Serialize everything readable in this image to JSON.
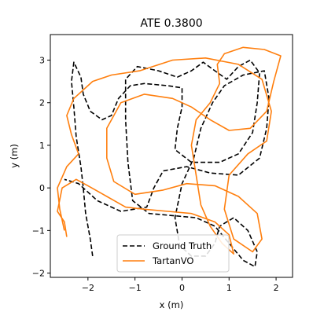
{
  "chart_data": {
    "type": "line",
    "title": "ATE 0.3800",
    "xlabel": "x (m)",
    "ylabel": "y (m)",
    "xlim": [
      -2.8,
      2.35
    ],
    "ylim": [
      -2.1,
      3.6
    ],
    "xticks": [
      -2,
      -1,
      0,
      1,
      2
    ],
    "yticks": [
      -2,
      -1,
      0,
      1,
      2,
      3
    ],
    "xtick_labels": [
      "−2",
      "−1",
      "0",
      "1",
      "2"
    ],
    "ytick_labels": [
      "−2",
      "−1",
      "0",
      "1",
      "2",
      "3"
    ],
    "grid": false,
    "legend_position": "lower-center",
    "series": [
      {
        "name": "Ground Truth",
        "color": "#000000",
        "style": "dashed",
        "points": [
          [
            -1.9,
            -1.6
          ],
          [
            -1.95,
            -1.2
          ],
          [
            -2.05,
            -0.6
          ],
          [
            -2.1,
            0.0
          ],
          [
            -2.15,
            0.5
          ],
          [
            -2.25,
            1.2
          ],
          [
            -2.3,
            1.9
          ],
          [
            -2.35,
            2.5
          ],
          [
            -2.3,
            2.95
          ],
          [
            -2.15,
            2.6
          ],
          [
            -2.1,
            2.2
          ],
          [
            -1.95,
            1.8
          ],
          [
            -1.7,
            1.6
          ],
          [
            -1.5,
            1.7
          ],
          [
            -1.35,
            2.1
          ],
          [
            -1.1,
            2.4
          ],
          [
            -0.8,
            2.45
          ],
          [
            -0.3,
            2.4
          ],
          [
            0.0,
            2.35
          ],
          [
            0.0,
            1.9
          ],
          [
            -0.1,
            1.4
          ],
          [
            -0.15,
            0.9
          ],
          [
            0.2,
            0.6
          ],
          [
            0.8,
            0.6
          ],
          [
            1.2,
            0.8
          ],
          [
            1.5,
            1.3
          ],
          [
            1.6,
            2.0
          ],
          [
            1.65,
            2.7
          ],
          [
            1.45,
            3.0
          ],
          [
            1.2,
            2.85
          ],
          [
            0.95,
            2.55
          ],
          [
            0.7,
            2.75
          ],
          [
            0.45,
            2.95
          ],
          [
            0.2,
            2.75
          ],
          [
            -0.1,
            2.6
          ],
          [
            -0.5,
            2.75
          ],
          [
            -0.95,
            2.85
          ],
          [
            -1.2,
            2.55
          ],
          [
            -1.2,
            1.6
          ],
          [
            -1.15,
            0.6
          ],
          [
            -1.05,
            -0.3
          ],
          [
            -0.7,
            -0.6
          ],
          [
            -0.2,
            -0.65
          ],
          [
            0.3,
            -0.7
          ],
          [
            0.7,
            -0.9
          ],
          [
            1.0,
            -1.3
          ],
          [
            1.3,
            -1.7
          ],
          [
            1.55,
            -1.85
          ],
          [
            1.6,
            -1.5
          ],
          [
            1.4,
            -1.0
          ],
          [
            1.1,
            -0.7
          ],
          [
            0.8,
            -0.9
          ],
          [
            0.7,
            -1.3
          ],
          [
            0.5,
            -1.6
          ],
          [
            0.2,
            -1.6
          ],
          [
            -0.05,
            -1.35
          ],
          [
            -0.15,
            -0.7
          ],
          [
            0.0,
            0.1
          ],
          [
            0.25,
            0.7
          ],
          [
            0.4,
            1.4
          ],
          [
            0.65,
            2.0
          ],
          [
            0.9,
            2.4
          ],
          [
            1.3,
            2.65
          ],
          [
            1.75,
            2.75
          ],
          [
            1.85,
            2.1
          ],
          [
            1.8,
            1.4
          ],
          [
            1.65,
            0.7
          ],
          [
            1.2,
            0.3
          ],
          [
            0.6,
            0.35
          ],
          [
            0.1,
            0.5
          ],
          [
            -0.4,
            0.4
          ],
          [
            -0.6,
            0.0
          ],
          [
            -0.75,
            -0.45
          ],
          [
            -1.3,
            -0.55
          ],
          [
            -1.8,
            -0.3
          ],
          [
            -2.2,
            0.1
          ],
          [
            -2.5,
            0.2
          ]
        ]
      },
      {
        "name": "TartanVO",
        "color": "#ff7f0e",
        "style": "solid",
        "points": [
          [
            -2.45,
            -1.15
          ],
          [
            -2.5,
            -0.8
          ],
          [
            -2.65,
            -0.55
          ],
          [
            -2.55,
            0.0
          ],
          [
            -2.25,
            0.2
          ],
          [
            -2.0,
            0.05
          ],
          [
            -1.6,
            -0.2
          ],
          [
            -1.2,
            -0.45
          ],
          [
            -0.8,
            -0.5
          ],
          [
            -0.3,
            -0.55
          ],
          [
            0.2,
            -0.6
          ],
          [
            0.7,
            -0.8
          ],
          [
            1.0,
            -1.1
          ],
          [
            1.1,
            -1.55
          ],
          [
            0.85,
            -1.3
          ],
          [
            0.6,
            -0.9
          ],
          [
            0.4,
            -0.4
          ],
          [
            0.3,
            0.3
          ],
          [
            0.2,
            1.0
          ],
          [
            0.3,
            1.6
          ],
          [
            0.6,
            2.0
          ],
          [
            0.8,
            2.45
          ],
          [
            0.75,
            2.9
          ],
          [
            0.9,
            3.15
          ],
          [
            1.3,
            3.3
          ],
          [
            1.75,
            3.25
          ],
          [
            2.1,
            3.1
          ],
          [
            1.95,
            2.5
          ],
          [
            1.8,
            1.8
          ],
          [
            1.45,
            1.4
          ],
          [
            1.0,
            1.35
          ],
          [
            0.6,
            1.6
          ],
          [
            0.2,
            1.9
          ],
          [
            -0.2,
            2.1
          ],
          [
            -0.8,
            2.2
          ],
          [
            -1.3,
            2.0
          ],
          [
            -1.6,
            1.4
          ],
          [
            -1.6,
            0.7
          ],
          [
            -1.45,
            0.15
          ],
          [
            -1.0,
            -0.15
          ],
          [
            -0.4,
            -0.05
          ],
          [
            0.1,
            0.1
          ],
          [
            0.7,
            0.05
          ],
          [
            1.2,
            -0.2
          ],
          [
            1.6,
            -0.6
          ],
          [
            1.7,
            -1.2
          ],
          [
            1.5,
            -1.5
          ],
          [
            1.1,
            -1.2
          ],
          [
            0.9,
            -0.5
          ],
          [
            1.0,
            0.3
          ],
          [
            1.4,
            0.8
          ],
          [
            1.8,
            1.1
          ],
          [
            1.9,
            1.8
          ],
          [
            1.7,
            2.55
          ],
          [
            1.2,
            2.9
          ],
          [
            0.5,
            3.05
          ],
          [
            -0.2,
            3.0
          ],
          [
            -0.9,
            2.75
          ],
          [
            -1.5,
            2.65
          ],
          [
            -1.9,
            2.5
          ],
          [
            -2.3,
            2.1
          ],
          [
            -2.45,
            1.7
          ],
          [
            -2.35,
            1.25
          ],
          [
            -2.2,
            0.8
          ],
          [
            -2.45,
            0.5
          ],
          [
            -2.65,
            0.0
          ],
          [
            -2.6,
            -0.5
          ],
          [
            -2.5,
            -1.0
          ]
        ]
      }
    ]
  }
}
